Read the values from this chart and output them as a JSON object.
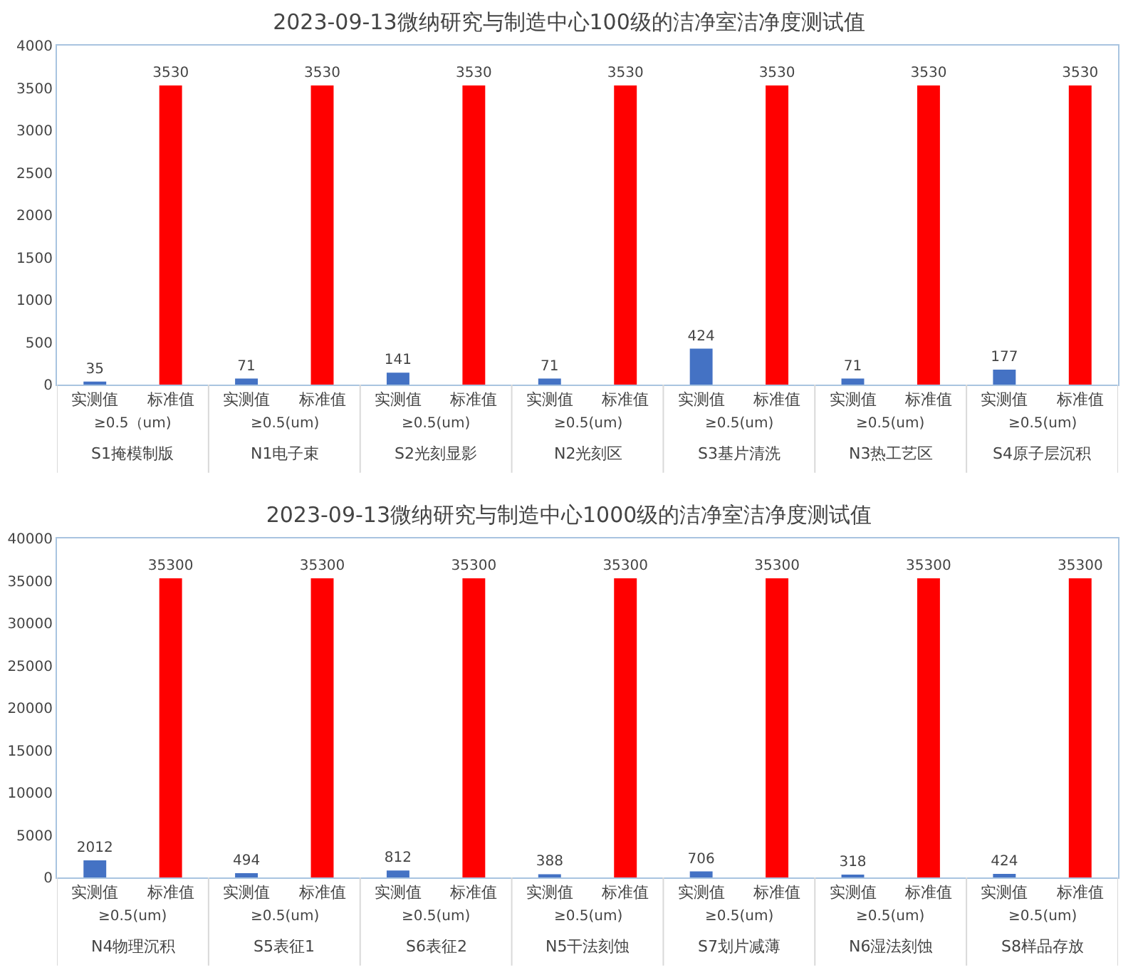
{
  "chart_data": [
    {
      "type": "bar",
      "title": "2023-09-13微纳研究与制造中心100级的洁净室洁净度测试值",
      "categories": [
        "实测值",
        "标准值",
        "实测值",
        "标准值",
        "实测值",
        "标准值",
        "实测值",
        "标准值",
        "实测值",
        "标准值",
        "实测值",
        "标准值",
        "实测值",
        "标准值"
      ],
      "values": [
        35,
        3530,
        71,
        3530,
        141,
        3530,
        71,
        3530,
        424,
        3530,
        71,
        3530,
        177,
        3530
      ],
      "colors": [
        "#4472c4",
        "#ff0000",
        "#4472c4",
        "#ff0000",
        "#4472c4",
        "#ff0000",
        "#4472c4",
        "#ff0000",
        "#4472c4",
        "#ff0000",
        "#4472c4",
        "#ff0000",
        "#4472c4",
        "#ff0000"
      ],
      "annotations": [
        "≥0.5（um)",
        "S1掩模制版",
        "≥0.5(um)",
        "N1电子束",
        "≥0.5(um)",
        "S2光刻显影",
        "≥0.5(um)",
        "N2光刻区",
        "≥0.5(um)",
        "S3基片清洗",
        "≥0.5(um)",
        "N3热工艺区",
        "≥0.5(um)",
        "S4原子层沉积"
      ],
      "ylim": [
        0,
        4000
      ],
      "yticks": [
        0,
        500,
        1000,
        1500,
        2000,
        2500,
        3000,
        3500,
        4000
      ],
      "data_labels": true,
      "grid": false
    },
    {
      "type": "bar",
      "title": "2023-09-13微纳研究与制造中心1000级的洁净室洁净度测试值",
      "categories": [
        "实测值",
        "标准值",
        "实测值",
        "标准值",
        "实测值",
        "标准值",
        "实测值",
        "标准值",
        "实测值",
        "标准值",
        "实测值",
        "标准值",
        "实测值",
        "标准值"
      ],
      "values": [
        2012,
        35300,
        494,
        35300,
        812,
        35300,
        388,
        35300,
        706,
        35300,
        318,
        35300,
        424,
        35300
      ],
      "colors": [
        "#4472c4",
        "#ff0000",
        "#4472c4",
        "#ff0000",
        "#4472c4",
        "#ff0000",
        "#4472c4",
        "#ff0000",
        "#4472c4",
        "#ff0000",
        "#4472c4",
        "#ff0000",
        "#4472c4",
        "#ff0000"
      ],
      "annotations": [
        "≥0.5(um)",
        "N4物理沉积",
        "≥0.5(um)",
        "S5表征1",
        "≥0.5(um)",
        "S6表征2",
        "≥0.5(um)",
        "N5干法刻蚀",
        "≥0.5(um)",
        "S7划片减薄",
        "≥0.5(um)",
        "N6湿法刻蚀",
        "≥0.5(um)",
        "S8样品存放"
      ],
      "ylim": [
        0,
        40000
      ],
      "yticks": [
        0,
        5000,
        10000,
        15000,
        20000,
        25000,
        30000,
        35000,
        40000
      ],
      "data_labels": true,
      "grid": false
    }
  ]
}
